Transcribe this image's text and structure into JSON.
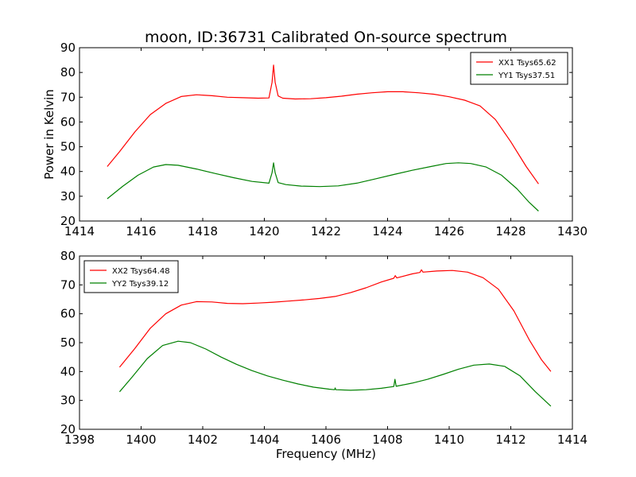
{
  "figure_title": "moon, ID:36731 Calibrated On-source spectrum",
  "chart_data": [
    {
      "type": "line",
      "xlim": [
        1414,
        1430
      ],
      "ylim": [
        20,
        90
      ],
      "xticks": [
        "1414",
        "1416",
        "1418",
        "1420",
        "1422",
        "1424",
        "1426",
        "1428",
        "1430"
      ],
      "yticks": [
        "20",
        "30",
        "40",
        "50",
        "60",
        "70",
        "80",
        "90"
      ],
      "xlabel": "",
      "ylabel": "Power in Kelvin",
      "legend_position": "upper right",
      "series": [
        {
          "name": "XX1 Tsys65.62",
          "color": "#ff0000",
          "points": [
            [
              1414.9,
              42
            ],
            [
              1415.3,
              48
            ],
            [
              1415.8,
              56
            ],
            [
              1416.3,
              63
            ],
            [
              1416.8,
              67.5
            ],
            [
              1417.3,
              70.3
            ],
            [
              1417.8,
              71
            ],
            [
              1418.3,
              70.6
            ],
            [
              1418.8,
              70
            ],
            [
              1419.3,
              69.8
            ],
            [
              1419.8,
              69.6
            ],
            [
              1420.15,
              69.7
            ],
            [
              1420.25,
              76
            ],
            [
              1420.3,
              83
            ],
            [
              1420.35,
              76
            ],
            [
              1420.45,
              70.5
            ],
            [
              1420.6,
              69.6
            ],
            [
              1421.0,
              69.3
            ],
            [
              1421.5,
              69.4
            ],
            [
              1422.0,
              69.8
            ],
            [
              1422.5,
              70.4
            ],
            [
              1423.0,
              71.2
            ],
            [
              1423.5,
              71.8
            ],
            [
              1424.0,
              72.2
            ],
            [
              1424.5,
              72.2
            ],
            [
              1425.0,
              71.8
            ],
            [
              1425.5,
              71.2
            ],
            [
              1426.0,
              70.2
            ],
            [
              1426.5,
              68.8
            ],
            [
              1427.0,
              66.5
            ],
            [
              1427.5,
              61
            ],
            [
              1428.0,
              52
            ],
            [
              1428.5,
              42
            ],
            [
              1428.9,
              35
            ]
          ]
        },
        {
          "name": "YY1 Tsys37.51",
          "color": "#008000",
          "points": [
            [
              1414.9,
              29
            ],
            [
              1415.4,
              34
            ],
            [
              1415.9,
              38.5
            ],
            [
              1416.4,
              41.8
            ],
            [
              1416.8,
              42.8
            ],
            [
              1417.2,
              42.5
            ],
            [
              1417.8,
              41
            ],
            [
              1418.4,
              39.2
            ],
            [
              1419.0,
              37.5
            ],
            [
              1419.6,
              36
            ],
            [
              1420.15,
              35.3
            ],
            [
              1420.25,
              39.5
            ],
            [
              1420.3,
              43.5
            ],
            [
              1420.35,
              39.5
            ],
            [
              1420.45,
              35.5
            ],
            [
              1420.7,
              34.7
            ],
            [
              1421.2,
              34.1
            ],
            [
              1421.8,
              33.9
            ],
            [
              1422.4,
              34.2
            ],
            [
              1423.0,
              35.3
            ],
            [
              1423.6,
              37
            ],
            [
              1424.2,
              38.8
            ],
            [
              1424.8,
              40.5
            ],
            [
              1425.4,
              42
            ],
            [
              1425.9,
              43.2
            ],
            [
              1426.3,
              43.5
            ],
            [
              1426.7,
              43.2
            ],
            [
              1427.2,
              41.8
            ],
            [
              1427.7,
              38.5
            ],
            [
              1428.2,
              33
            ],
            [
              1428.6,
              27.5
            ],
            [
              1428.9,
              24
            ]
          ]
        }
      ]
    },
    {
      "type": "line",
      "xlim": [
        1398,
        1414
      ],
      "ylim": [
        20,
        80
      ],
      "xticks": [
        "1398",
        "1400",
        "1402",
        "1404",
        "1406",
        "1408",
        "1410",
        "1412",
        "1414"
      ],
      "yticks": [
        "20",
        "30",
        "40",
        "50",
        "60",
        "70",
        "80"
      ],
      "xlabel": "Frequency (MHz)",
      "ylabel": "",
      "legend_position": "upper left",
      "series": [
        {
          "name": "XX2 Tsys64.48",
          "color": "#ff0000",
          "points": [
            [
              1399.3,
              41.5
            ],
            [
              1399.8,
              48
            ],
            [
              1400.3,
              55
            ],
            [
              1400.8,
              60
            ],
            [
              1401.3,
              63
            ],
            [
              1401.8,
              64.2
            ],
            [
              1402.3,
              64.1
            ],
            [
              1402.8,
              63.6
            ],
            [
              1403.3,
              63.5
            ],
            [
              1403.8,
              63.7
            ],
            [
              1404.3,
              64
            ],
            [
              1404.8,
              64.4
            ],
            [
              1405.3,
              64.8
            ],
            [
              1405.8,
              65.3
            ],
            [
              1406.3,
              66
            ],
            [
              1406.8,
              67.3
            ],
            [
              1407.3,
              69
            ],
            [
              1407.8,
              71
            ],
            [
              1408.2,
              72.3
            ],
            [
              1408.25,
              73.2
            ],
            [
              1408.3,
              72.4
            ],
            [
              1408.8,
              73.8
            ],
            [
              1409.05,
              74.3
            ],
            [
              1409.1,
              75.2
            ],
            [
              1409.15,
              74.4
            ],
            [
              1409.6,
              74.8
            ],
            [
              1410.1,
              75
            ],
            [
              1410.6,
              74.4
            ],
            [
              1411.1,
              72.5
            ],
            [
              1411.6,
              68.5
            ],
            [
              1412.1,
              61
            ],
            [
              1412.6,
              51
            ],
            [
              1413.0,
              44
            ],
            [
              1413.3,
              40
            ]
          ]
        },
        {
          "name": "YY2 Tsys39.12",
          "color": "#008000",
          "points": [
            [
              1399.3,
              33
            ],
            [
              1399.7,
              38
            ],
            [
              1400.2,
              44.5
            ],
            [
              1400.7,
              49
            ],
            [
              1401.2,
              50.5
            ],
            [
              1401.6,
              50
            ],
            [
              1402.1,
              47.8
            ],
            [
              1402.6,
              45
            ],
            [
              1403.1,
              42.5
            ],
            [
              1403.6,
              40.3
            ],
            [
              1404.1,
              38.5
            ],
            [
              1404.6,
              37
            ],
            [
              1405.1,
              35.7
            ],
            [
              1405.6,
              34.6
            ],
            [
              1406.1,
              33.9
            ],
            [
              1406.28,
              33.7
            ],
            [
              1406.3,
              34.3
            ],
            [
              1406.32,
              33.7
            ],
            [
              1406.8,
              33.5
            ],
            [
              1407.3,
              33.7
            ],
            [
              1407.8,
              34.2
            ],
            [
              1408.2,
              34.8
            ],
            [
              1408.24,
              37.3
            ],
            [
              1408.28,
              34.9
            ],
            [
              1408.8,
              36
            ],
            [
              1409.3,
              37.3
            ],
            [
              1409.8,
              39
            ],
            [
              1410.3,
              40.8
            ],
            [
              1410.8,
              42.2
            ],
            [
              1411.3,
              42.6
            ],
            [
              1411.8,
              41.8
            ],
            [
              1412.3,
              38.5
            ],
            [
              1412.8,
              33
            ],
            [
              1413.3,
              28
            ]
          ]
        }
      ]
    }
  ]
}
